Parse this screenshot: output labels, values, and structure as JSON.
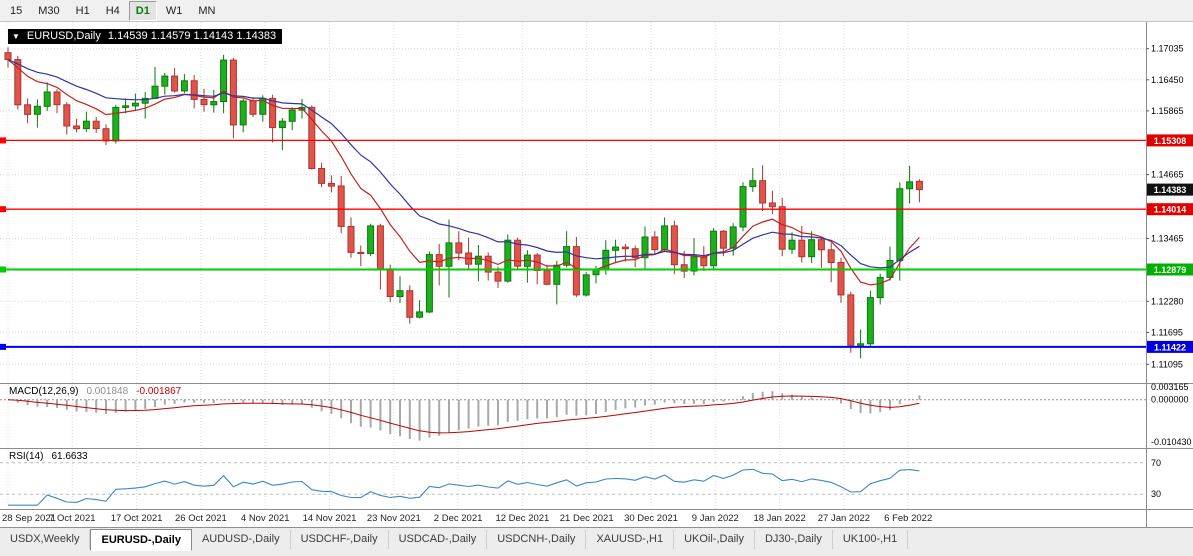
{
  "toolbar": {
    "timeframes": [
      {
        "label": "15",
        "active": false
      },
      {
        "label": "M30",
        "active": false
      },
      {
        "label": "H1",
        "active": false
      },
      {
        "label": "H4",
        "active": false
      },
      {
        "label": "D1",
        "active": true
      },
      {
        "label": "W1",
        "active": false
      },
      {
        "label": "MN",
        "active": false
      }
    ]
  },
  "main_chart": {
    "header_symbol": "EURUSD,Daily",
    "header_values": "1.14539 1.14579 1.14143 1.14383"
  },
  "macd": {
    "title": "MACD(12,26,9)",
    "value_main": "0.001848",
    "value_signal": "-0.001867"
  },
  "rsi": {
    "title": "RSI(14)",
    "value": "61.6633"
  },
  "tabs": [
    {
      "label": "USDX,Weekly",
      "active": false
    },
    {
      "label": "EURUSD-,Daily",
      "active": true
    },
    {
      "label": "AUDUSD-,Daily",
      "active": false
    },
    {
      "label": "USDCHF-,Daily",
      "active": false
    },
    {
      "label": "USDCAD-,Daily",
      "active": false
    },
    {
      "label": "USDCNH-,Daily",
      "active": false
    },
    {
      "label": "XAUUSD-,H1",
      "active": false
    },
    {
      "label": "UKOil-,Daily",
      "active": false
    },
    {
      "label": "DJ30-,Daily",
      "active": false
    },
    {
      "label": "UK100-,H1",
      "active": false
    }
  ],
  "chart_data": {
    "type": "candlestick",
    "symbol": "EURUSD",
    "timeframe": "Daily",
    "last_bar": {
      "open": 1.14539,
      "high": 1.14579,
      "low": 1.14143,
      "close": 1.14383
    },
    "view": {
      "p_max": 1.175,
      "p_min": 1.1078
    },
    "colors": {
      "background": "#ffffff",
      "grid": "#dcdcdc",
      "up": "#1fae1f",
      "up_border": "#0c7a0c",
      "down": "#e0544c",
      "down_border": "#a9362e"
    },
    "y_ticks": [
      "1.17035",
      "1.16450",
      "1.15865",
      "1.14665",
      "1.13465",
      "1.12280",
      "1.11695",
      "1.11095"
    ],
    "price_lines": [
      {
        "price": 1.15308,
        "label": "1.15308",
        "color": "#ff0000",
        "badge": "#e00000",
        "width": 1.3
      },
      {
        "price": 1.14014,
        "label": "1.14014",
        "color": "#ff0000",
        "badge": "#e00000",
        "width": 1.3
      },
      {
        "price": 1.12879,
        "label": "1.12879",
        "color": "#00cc00",
        "badge": "#00b000",
        "width": 2
      },
      {
        "price": 1.11422,
        "label": "1.11422",
        "color": "#0000ff",
        "badge": "#0000dd",
        "width": 2
      }
    ],
    "current_price": 1.14383,
    "current_price_label": "1.14383",
    "moving_averages": [
      {
        "type": "ema",
        "period": 10,
        "color": "#c22222"
      },
      {
        "type": "ema",
        "period": 20,
        "color": "#33339f"
      }
    ],
    "macd_range": [
      -0.0112,
      0.0034
    ],
    "macd_axis": [
      "0.003165",
      "0.000000",
      "-0.010430"
    ],
    "macd_colors": {
      "histogram": "#a8a8a8",
      "signal": "#c00000"
    },
    "rsi_period": 14,
    "rsi_levels": [
      70,
      30
    ],
    "rsi_range": [
      15,
      85
    ],
    "rsi_color": "#3b87c8",
    "x_ticks": [
      "28 Sep 2021",
      "7 Oct 2021",
      "17 Oct 2021",
      "26 Oct 2021",
      "4 Nov 2021",
      "14 Nov 2021",
      "23 Nov 2021",
      "2 Dec 2021",
      "12 Dec 2021",
      "21 Dec 2021",
      "30 Dec 2021",
      "9 Jan 2022",
      "18 Jan 2022",
      "27 Jan 2022",
      "6 Feb 2022"
    ],
    "candles": [
      [
        1.1696,
        1.1706,
        1.1668,
        1.1683
      ],
      [
        1.1683,
        1.169,
        1.1589,
        1.1598
      ],
      [
        1.1598,
        1.161,
        1.1563,
        1.158
      ],
      [
        1.158,
        1.1608,
        1.1555,
        1.1595
      ],
      [
        1.1595,
        1.164,
        1.1586,
        1.1622
      ],
      [
        1.1622,
        1.1627,
        1.1582,
        1.1598
      ],
      [
        1.1598,
        1.1603,
        1.1542,
        1.1558
      ],
      [
        1.1558,
        1.1572,
        1.1546,
        1.1553
      ],
      [
        1.1553,
        1.1585,
        1.1547,
        1.1567
      ],
      [
        1.1567,
        1.1575,
        1.1545,
        1.1553
      ],
      [
        1.1553,
        1.1561,
        1.1522,
        1.153
      ],
      [
        1.153,
        1.1598,
        1.1525,
        1.1593
      ],
      [
        1.1593,
        1.161,
        1.1582,
        1.1596
      ],
      [
        1.1596,
        1.1619,
        1.1588,
        1.1601
      ],
      [
        1.1601,
        1.1622,
        1.1572,
        1.161
      ],
      [
        1.161,
        1.1669,
        1.1609,
        1.1633
      ],
      [
        1.1633,
        1.1658,
        1.1617,
        1.1652
      ],
      [
        1.1652,
        1.1667,
        1.1621,
        1.1624
      ],
      [
        1.1624,
        1.1656,
        1.162,
        1.1643
      ],
      [
        1.1643,
        1.1654,
        1.1591,
        1.1608
      ],
      [
        1.1608,
        1.1628,
        1.1585,
        1.1598
      ],
      [
        1.1598,
        1.1626,
        1.1583,
        1.1604
      ],
      [
        1.1604,
        1.1692,
        1.1582,
        1.1682
      ],
      [
        1.1682,
        1.1686,
        1.1535,
        1.156
      ],
      [
        1.156,
        1.1609,
        1.1546,
        1.1605
      ],
      [
        1.1605,
        1.1612,
        1.1575,
        1.158
      ],
      [
        1.158,
        1.1616,
        1.1566,
        1.161
      ],
      [
        1.161,
        1.1617,
        1.1527,
        1.1555
      ],
      [
        1.1555,
        1.1573,
        1.1513,
        1.1567
      ],
      [
        1.1567,
        1.1593,
        1.155,
        1.1588
      ],
      [
        1.1588,
        1.1609,
        1.1572,
        1.1593
      ],
      [
        1.1593,
        1.1597,
        1.1476,
        1.1478
      ],
      [
        1.1478,
        1.1489,
        1.1443,
        1.145
      ],
      [
        1.145,
        1.1465,
        1.1433,
        1.1445
      ],
      [
        1.1445,
        1.1464,
        1.1356,
        1.1369
      ],
      [
        1.1369,
        1.1386,
        1.131,
        1.132
      ],
      [
        1.132,
        1.1333,
        1.1294,
        1.1318
      ],
      [
        1.1318,
        1.1374,
        1.1313,
        1.137
      ],
      [
        1.137,
        1.1374,
        1.125,
        1.1289
      ],
      [
        1.1289,
        1.1297,
        1.1226,
        1.1237
      ],
      [
        1.1237,
        1.1275,
        1.1225,
        1.1248
      ],
      [
        1.1248,
        1.1258,
        1.1186,
        1.1198
      ],
      [
        1.1198,
        1.123,
        1.1196,
        1.1208
      ],
      [
        1.1208,
        1.1322,
        1.1206,
        1.1316
      ],
      [
        1.1316,
        1.1336,
        1.1258,
        1.1294
      ],
      [
        1.1294,
        1.1382,
        1.1235,
        1.1338
      ],
      [
        1.1338,
        1.136,
        1.1305,
        1.1319
      ],
      [
        1.1319,
        1.1348,
        1.1288,
        1.1298
      ],
      [
        1.1298,
        1.1334,
        1.1266,
        1.1313
      ],
      [
        1.1313,
        1.132,
        1.1267,
        1.1283
      ],
      [
        1.1283,
        1.1293,
        1.1253,
        1.1266
      ],
      [
        1.1266,
        1.1354,
        1.1263,
        1.1343
      ],
      [
        1.1343,
        1.1348,
        1.1288,
        1.1294
      ],
      [
        1.1294,
        1.1324,
        1.1263,
        1.1315
      ],
      [
        1.1315,
        1.1319,
        1.126,
        1.1286
      ],
      [
        1.1286,
        1.1297,
        1.1258,
        1.126
      ],
      [
        1.126,
        1.1304,
        1.1222,
        1.1296
      ],
      [
        1.1296,
        1.136,
        1.1292,
        1.1331
      ],
      [
        1.1331,
        1.1349,
        1.1236,
        1.124
      ],
      [
        1.124,
        1.1283,
        1.1237,
        1.1278
      ],
      [
        1.1278,
        1.1295,
        1.1262,
        1.1288
      ],
      [
        1.1288,
        1.1343,
        1.1278,
        1.1324
      ],
      [
        1.1324,
        1.1344,
        1.13,
        1.133
      ],
      [
        1.133,
        1.1336,
        1.1303,
        1.1327
      ],
      [
        1.1327,
        1.1333,
        1.1292,
        1.131
      ],
      [
        1.131,
        1.1369,
        1.1286,
        1.1349
      ],
      [
        1.1349,
        1.136,
        1.1316,
        1.1325
      ],
      [
        1.1325,
        1.1386,
        1.1321,
        1.137
      ],
      [
        1.137,
        1.138,
        1.1279,
        1.1297
      ],
      [
        1.1297,
        1.1323,
        1.1272,
        1.1285
      ],
      [
        1.1285,
        1.1347,
        1.1277,
        1.1312
      ],
      [
        1.1312,
        1.1332,
        1.1285,
        1.1295
      ],
      [
        1.1295,
        1.1366,
        1.1288,
        1.136
      ],
      [
        1.136,
        1.1362,
        1.1313,
        1.1328
      ],
      [
        1.1328,
        1.1375,
        1.1314,
        1.1368
      ],
      [
        1.1368,
        1.1452,
        1.136,
        1.1444
      ],
      [
        1.1444,
        1.1479,
        1.1434,
        1.1455
      ],
      [
        1.1455,
        1.1484,
        1.1398,
        1.1413
      ],
      [
        1.1413,
        1.1436,
        1.1392,
        1.1406
      ],
      [
        1.1406,
        1.1423,
        1.1313,
        1.1326
      ],
      [
        1.1326,
        1.1358,
        1.1317,
        1.1343
      ],
      [
        1.1343,
        1.137,
        1.1301,
        1.1312
      ],
      [
        1.1312,
        1.136,
        1.13,
        1.1344
      ],
      [
        1.1344,
        1.1349,
        1.1291,
        1.1325
      ],
      [
        1.1325,
        1.1338,
        1.1264,
        1.1301
      ],
      [
        1.1301,
        1.131,
        1.1225,
        1.124
      ],
      [
        1.124,
        1.1246,
        1.1131,
        1.1145
      ],
      [
        1.1145,
        1.1175,
        1.1121,
        1.1148
      ],
      [
        1.1148,
        1.1248,
        1.1141,
        1.1235
      ],
      [
        1.1235,
        1.128,
        1.1222,
        1.1273
      ],
      [
        1.1273,
        1.1331,
        1.1267,
        1.1305
      ],
      [
        1.1305,
        1.1452,
        1.1267,
        1.144
      ],
      [
        1.144,
        1.1483,
        1.1412,
        1.1453
      ],
      [
        1.14539,
        1.14579,
        1.14143,
        1.14383
      ]
    ]
  }
}
